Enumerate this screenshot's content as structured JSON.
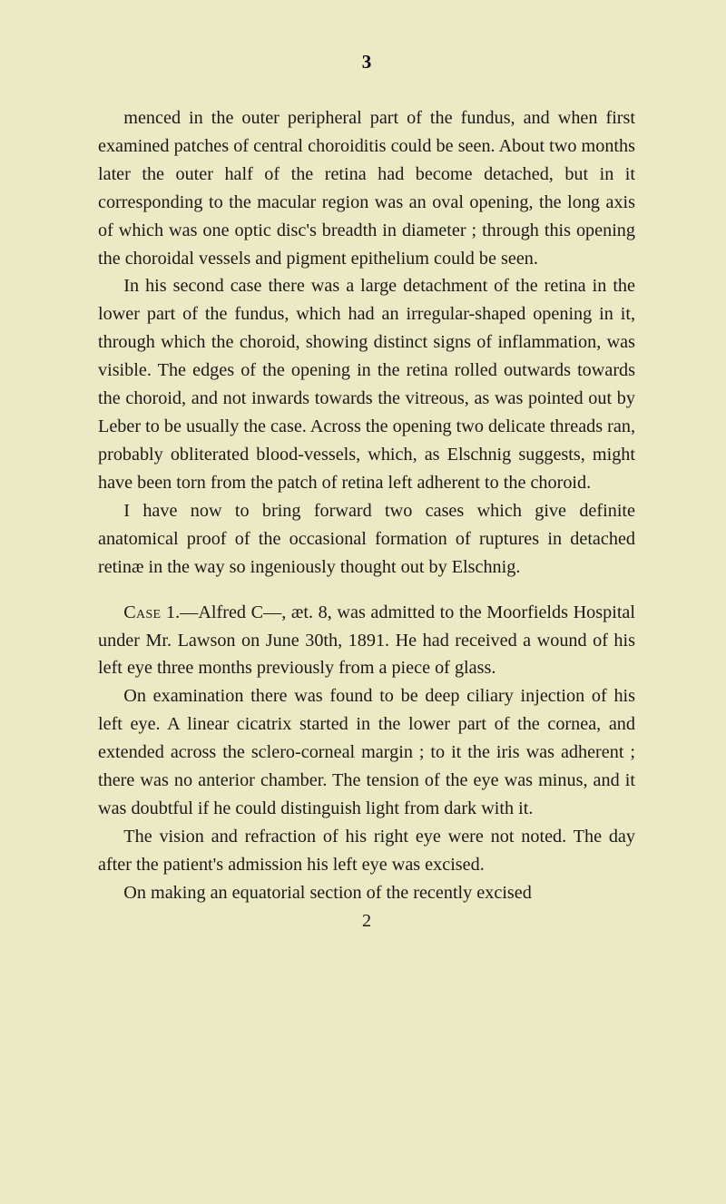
{
  "page": {
    "number": "3",
    "background_color": "#eceac4",
    "text_color": "#1a1a18",
    "font_size_pt": 15,
    "line_height": 1.53,
    "font_family": "Century, Georgia, Times New Roman, serif"
  },
  "paragraphs": {
    "p1": "menced in the outer peripheral part of the fundus, and when first examined patches of central choroiditis could be seen. About two months later the outer half of the retina had become detached, but in it corresponding to the macular region was an oval opening, the long axis of which was one optic disc's breadth in diameter ; through this opening the choroidal vessels and pigment epithe­lium could be seen.",
    "p2": "In his second case there was a large detachment of the retina in the lower part of the fundus, which had an irregular-shaped opening in it, through which the choroid, showing distinct signs of inflammation, was visible. The edges of the opening in the retina rolled outwards towards the choroid, and not inwards towards the vitreous, as was pointed out by Leber to be usually the case. Across the opening two delicate threads ran, probably obliterated blood-vessels, which, as Elschnig suggests, might have been torn from the patch of retina left adherent to the choroid.",
    "p3": "I have now to bring forward two cases which give definite anatomical proof of the occasional formation of ruptures in detached retinæ in the way so ingeniously thought out by Elschnig.",
    "case_label": "Case",
    "p4_rest": " 1.—Alfred C—, æt. 8, was admitted to the Moorfields Hospital under Mr. Lawson on June 30th, 1891. He had received a wound of his left eye three months previously from a piece of glass.",
    "p5": "On examination there was found to be deep ciliary injection of his left eye. A linear cicatrix started in the lower part of the cornea, and extended across the sclero-corneal margin ; to it the iris was adherent ; there was no anterior chamber. The tension of the eye was minus, and it was doubtful if he could distinguish light from dark with it.",
    "p6": "The vision and refraction of his right eye were not noted. The day after the patient's admission his left eye was excised.",
    "p7": "On making an equatorial section of the recently excised",
    "sig": "2"
  }
}
